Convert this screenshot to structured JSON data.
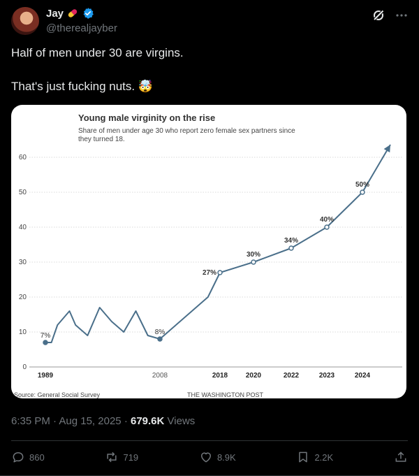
{
  "author": {
    "display_name": "Jay",
    "handle": "@therealjayber"
  },
  "tweet": {
    "line1": "Half of men under 30 are virgins.",
    "line2": "That's just fucking nuts. 🤯"
  },
  "meta": {
    "time": "6:35 PM",
    "date": "Aug 15, 2025",
    "views_count": "679.6K",
    "views_label": "Views"
  },
  "actions": {
    "replies": "860",
    "reposts": "719",
    "likes": "8.9K",
    "bookmarks": "2.2K"
  },
  "colors": {
    "line": "#4a6f8a",
    "accent": "#1d9bf0"
  },
  "chart_data": {
    "type": "line",
    "title": "Young male virginity on the rise",
    "subtitle_line1": "Share of men under age 30 who report zero female sex partners since",
    "subtitle_line2": "they turned 18.",
    "source": "Source: General Social Survey",
    "credit": "THE WASHINGTON POST",
    "ylim": [
      0,
      60
    ],
    "yticks": [
      0,
      10,
      20,
      30,
      40,
      50,
      60
    ],
    "xtick_labels": [
      "1989",
      "2008",
      "2018",
      "2020",
      "2022",
      "2023",
      "2024"
    ],
    "series": [
      {
        "values": [
          {
            "x": 1989,
            "y": 7,
            "label": "7%"
          },
          {
            "x": 1990,
            "y": 7
          },
          {
            "x": 1991,
            "y": 12
          },
          {
            "x": 1993,
            "y": 16
          },
          {
            "x": 1994,
            "y": 12
          },
          {
            "x": 1996,
            "y": 9
          },
          {
            "x": 1998,
            "y": 17
          },
          {
            "x": 2000,
            "y": 13
          },
          {
            "x": 2002,
            "y": 10
          },
          {
            "x": 2004,
            "y": 16
          },
          {
            "x": 2006,
            "y": 9
          },
          {
            "x": 2008,
            "y": 8,
            "label": "8%"
          },
          {
            "x": 2016,
            "y": 20
          },
          {
            "x": 2018,
            "y": 27,
            "label": "27%"
          },
          {
            "x": 2020,
            "y": 30,
            "label": "30%"
          },
          {
            "x": 2022,
            "y": 34,
            "label": "34%"
          },
          {
            "x": 2023,
            "y": 40,
            "label": "40%"
          },
          {
            "x": 2024,
            "y": 50,
            "label": "50%"
          }
        ]
      }
    ]
  }
}
